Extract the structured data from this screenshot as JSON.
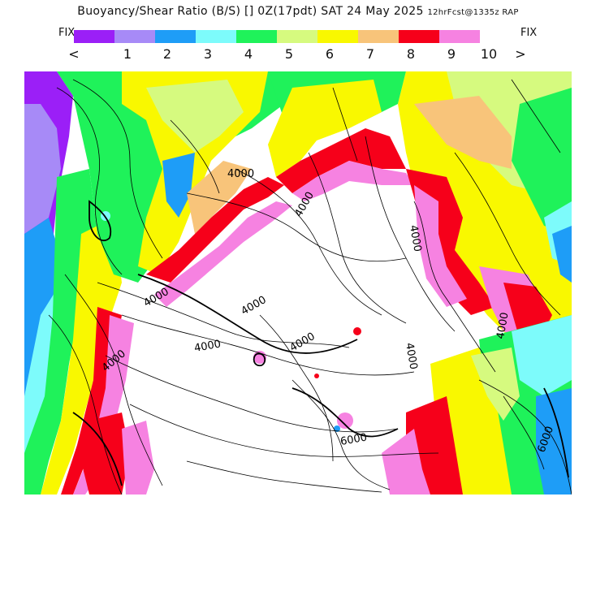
{
  "header": {
    "title": "Buoyancy/Shear Ratio (B/S) [] 0Z(17pdt) SAT 24 May 2025",
    "model_note": "12hrFcst@1335z RAP"
  },
  "legend": {
    "fix_left": "FIX",
    "fix_right": "FIX",
    "colors": [
      "#9b1ff7",
      "#a78af7",
      "#1e9df7",
      "#7dfbfb",
      "#1ff25a",
      "#d6fa7f",
      "#f9f800",
      "#f8c47a",
      "#f6001a",
      "#f682e1"
    ],
    "tick_labels": [
      "<",
      "1",
      "2",
      "3",
      "4",
      "5",
      "6",
      "7",
      "8",
      "9",
      "10",
      ">"
    ]
  },
  "map": {
    "contour_labels": [
      "4000",
      "4000",
      "4000",
      "4000",
      "4000",
      "4000",
      "4000",
      "4000",
      "4000",
      "4000",
      "6000",
      "6000"
    ]
  }
}
